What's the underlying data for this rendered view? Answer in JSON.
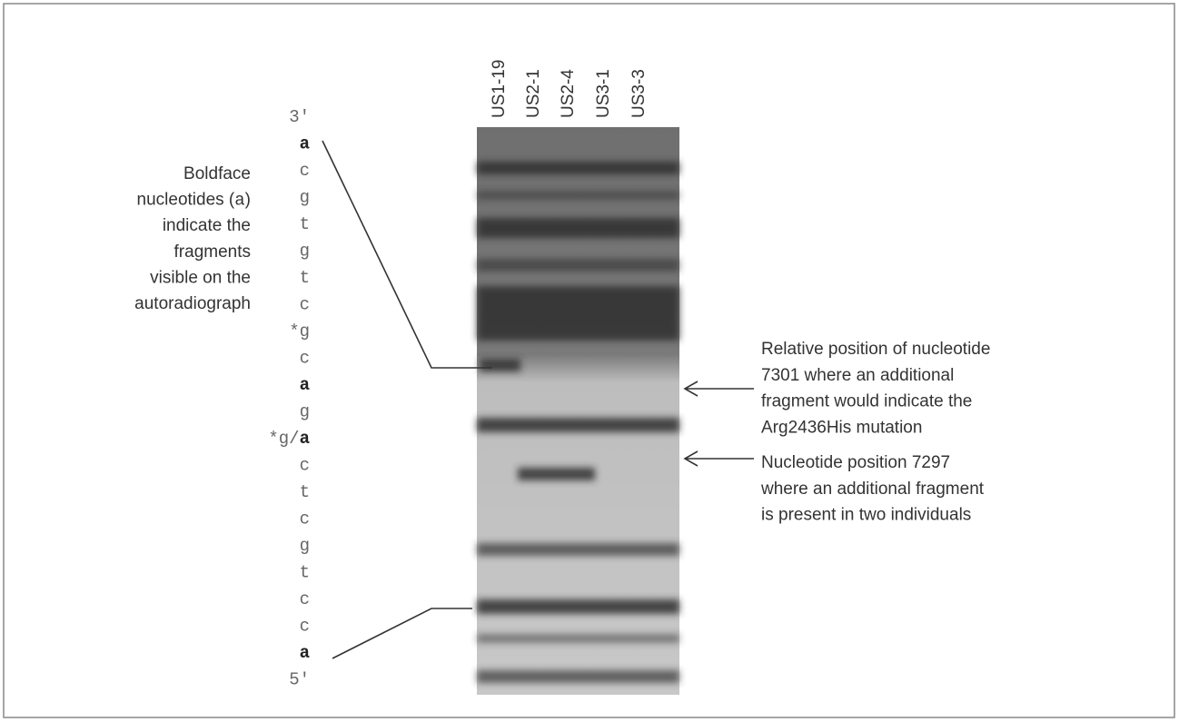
{
  "lanes": [
    "US1-19",
    "US2-1",
    "US2-4",
    "US3-1",
    "US3-3"
  ],
  "sequence": [
    [
      {
        "text": "3'",
        "bold": false
      }
    ],
    [
      {
        "text": "a",
        "bold": true
      }
    ],
    [
      {
        "text": "c",
        "bold": false
      }
    ],
    [
      {
        "text": "g",
        "bold": false
      }
    ],
    [
      {
        "text": "t",
        "bold": false
      }
    ],
    [
      {
        "text": "g",
        "bold": false
      }
    ],
    [
      {
        "text": "t",
        "bold": false
      }
    ],
    [
      {
        "text": "c",
        "bold": false
      }
    ],
    [
      {
        "text": "*g",
        "bold": false
      }
    ],
    [
      {
        "text": "c",
        "bold": false
      }
    ],
    [
      {
        "text": "a",
        "bold": true
      }
    ],
    [
      {
        "text": "g",
        "bold": false
      }
    ],
    [
      {
        "text": "*g/",
        "bold": false
      },
      {
        "text": "a",
        "bold": true
      }
    ],
    [
      {
        "text": "c",
        "bold": false
      }
    ],
    [
      {
        "text": "t",
        "bold": false
      }
    ],
    [
      {
        "text": "c",
        "bold": false
      }
    ],
    [
      {
        "text": "g",
        "bold": false
      }
    ],
    [
      {
        "text": "t",
        "bold": false
      }
    ],
    [
      {
        "text": "c",
        "bold": false
      }
    ],
    [
      {
        "text": "c",
        "bold": false
      }
    ],
    [
      {
        "text": "a",
        "bold": true
      }
    ],
    [
      {
        "text": "5'",
        "bold": false
      }
    ]
  ],
  "left_caption": [
    [
      {
        "text": "Boldface",
        "mono": false
      }
    ],
    [
      {
        "text": "nucleotides (",
        "mono": false
      },
      {
        "text": "a",
        "mono": true
      },
      {
        "text": ")",
        "mono": false
      }
    ],
    [
      {
        "text": "indicate the",
        "mono": false
      }
    ],
    [
      {
        "text": "fragments",
        "mono": false
      }
    ],
    [
      {
        "text": "visible on the",
        "mono": false
      }
    ],
    [
      {
        "text": "autoradiograph",
        "mono": false
      }
    ]
  ],
  "annotations": [
    [
      "Relative position of nucleotide",
      "7301 where an additional",
      "fragment would indicate the",
      "Arg2436His mutation"
    ],
    [
      "Nucleotide position 7297",
      "where an additional fragment",
      "is present in two individuals"
    ]
  ]
}
